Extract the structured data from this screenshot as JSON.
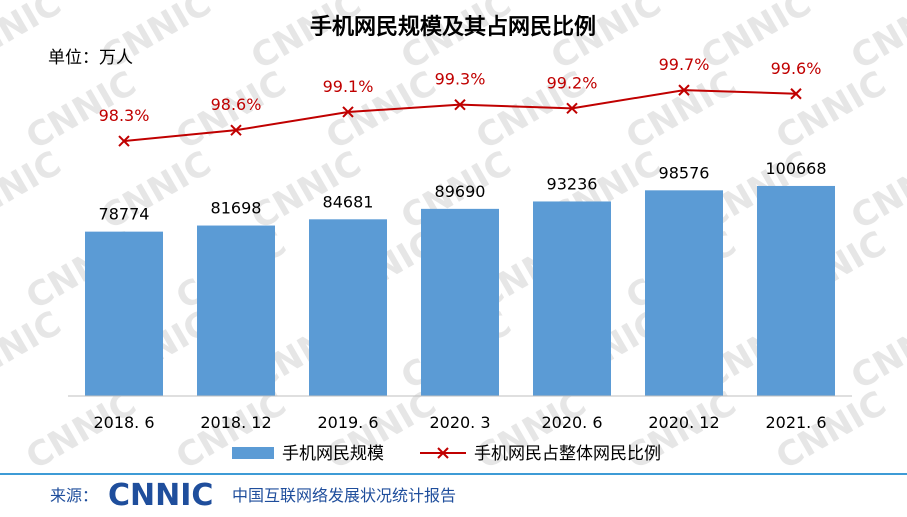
{
  "watermark": "CNNIC",
  "footer": {
    "source_label": "来源：",
    "logo_text": "CNNIC",
    "org_name": "中国互联网络发展状况统计报告"
  },
  "colors": {
    "bar": "#5b9bd5",
    "line": "#c00000",
    "footer": "#1f4e9c",
    "divider": "#3e9bd6"
  },
  "chart_data": {
    "type": "bar",
    "title": "手机网民规模及其占网民比例",
    "unit": "单位：万人",
    "categories": [
      "2018. 6",
      "2018. 12",
      "2019. 6",
      "2020. 3",
      "2020. 6",
      "2020. 12",
      "2021. 6"
    ],
    "series": [
      {
        "name": "手机网民规模",
        "type": "bar",
        "values": [
          78774,
          81698,
          84681,
          89690,
          93236,
          98576,
          100668
        ],
        "labels": [
          "78774",
          "81698",
          "84681",
          "89690",
          "93236",
          "98576",
          "100668"
        ]
      },
      {
        "name": "手机网民占整体网民比例",
        "type": "line",
        "marker": "x",
        "values": [
          98.3,
          98.6,
          99.1,
          99.3,
          99.2,
          99.7,
          99.6
        ],
        "labels": [
          "98.3%",
          "98.6%",
          "99.1%",
          "99.3%",
          "99.2%",
          "99.7%",
          "99.6%"
        ]
      }
    ],
    "ylim": [
      0,
      185000
    ],
    "y2lim": [
      91.3,
      101.9
    ],
    "grid": false,
    "legend_position": "bottom"
  }
}
